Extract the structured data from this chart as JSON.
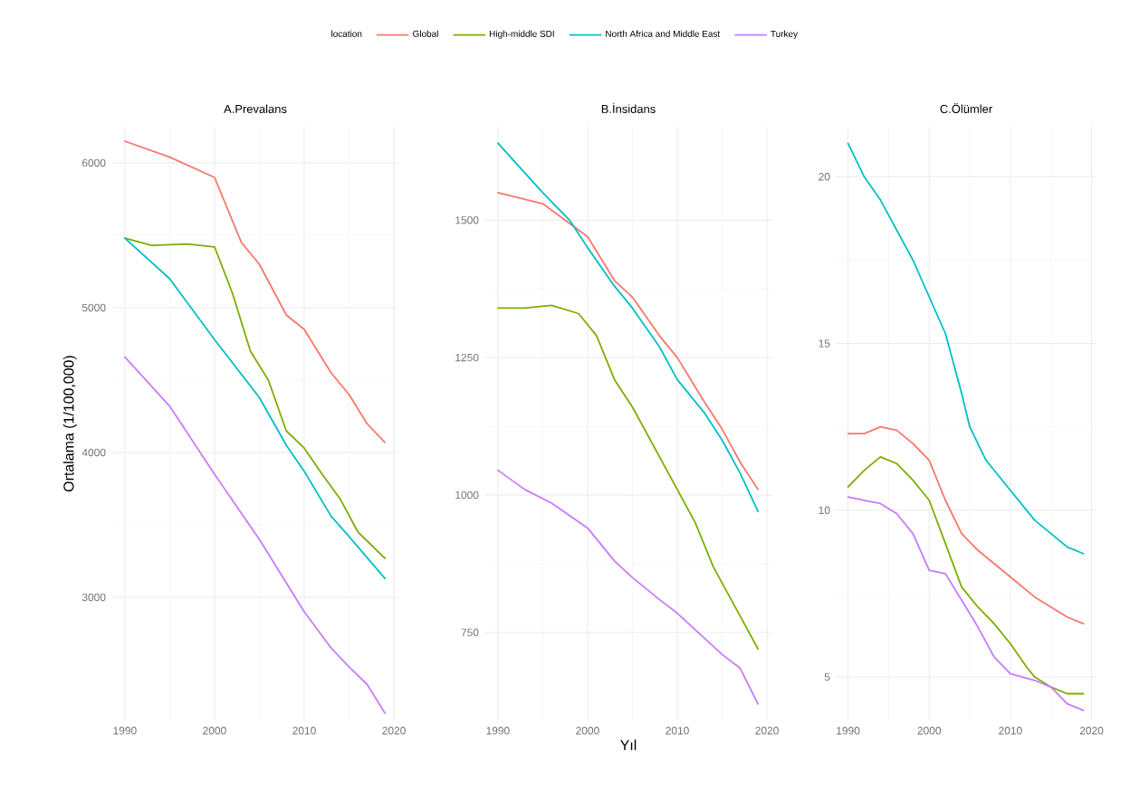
{
  "chart_data": [
    {
      "type": "line",
      "title": "A.Prevalans",
      "ylabel": "Ortalama (1/100,000)",
      "legend": "top",
      "legend_title": "location",
      "grid": true,
      "xlim": [
        1988.6,
        2020.5
      ],
      "ylim": [
        2150,
        6250
      ],
      "xticks": [
        1990,
        2000,
        2010,
        2020
      ],
      "yticks": [
        3000,
        4000,
        5000,
        6000
      ],
      "series": [
        {
          "name": "Global",
          "color": "#f8766d",
          "x": [
            1990,
            1995,
            2000,
            2003,
            2005,
            2008,
            2010,
            2013,
            2015,
            2017,
            2019
          ],
          "values": [
            6150,
            6040,
            5900,
            5450,
            5300,
            4950,
            4850,
            4550,
            4400,
            4200,
            4070
          ]
        },
        {
          "name": "High-middle SDI",
          "color": "#7cae00",
          "x": [
            1990,
            1993,
            1997,
            2000,
            2002,
            2004,
            2006,
            2008,
            2010,
            2012,
            2014,
            2016,
            2019
          ],
          "values": [
            5480,
            5430,
            5440,
            5420,
            5100,
            4700,
            4500,
            4150,
            4030,
            3850,
            3680,
            3450,
            3270
          ]
        },
        {
          "name": "North Africa and Middle East",
          "color": "#00bfc4",
          "x": [
            1990,
            1995,
            2000,
            2005,
            2008,
            2010,
            2013,
            2015,
            2019
          ],
          "values": [
            5480,
            5200,
            4780,
            4380,
            4050,
            3870,
            3560,
            3420,
            3130
          ]
        },
        {
          "name": "Turkey",
          "color": "#c77cff",
          "x": [
            1990,
            1995,
            2000,
            2005,
            2008,
            2010,
            2013,
            2015,
            2017,
            2019
          ],
          "values": [
            4660,
            4320,
            3850,
            3400,
            3100,
            2900,
            2650,
            2520,
            2400,
            2200
          ]
        }
      ]
    },
    {
      "type": "line",
      "title": "B.İnsidans",
      "xlabel": "Yıl",
      "grid": true,
      "xlim": [
        1988.6,
        2020.5
      ],
      "ylim": [
        590,
        1670
      ],
      "xticks": [
        1990,
        2000,
        2010,
        2020
      ],
      "yticks": [
        750,
        1000,
        1250,
        1500
      ],
      "series": [
        {
          "color": "#f8766d",
          "x": [
            1990,
            1995,
            2000,
            2003,
            2005,
            2008,
            2010,
            2013,
            2015,
            2017,
            2019
          ],
          "values": [
            1550,
            1530,
            1470,
            1390,
            1360,
            1290,
            1250,
            1170,
            1120,
            1060,
            1010
          ]
        },
        {
          "color": "#7cae00",
          "x": [
            1990,
            1993,
            1996,
            1999,
            2001,
            2003,
            2005,
            2008,
            2010,
            2012,
            2014,
            2016,
            2019
          ],
          "values": [
            1340,
            1340,
            1345,
            1330,
            1290,
            1210,
            1160,
            1070,
            1010,
            950,
            870,
            810,
            720
          ]
        },
        {
          "color": "#00bfc4",
          "x": [
            1990,
            1995,
            1998,
            2000,
            2003,
            2005,
            2008,
            2010,
            2013,
            2015,
            2017,
            2019
          ],
          "values": [
            1640,
            1550,
            1500,
            1450,
            1380,
            1340,
            1270,
            1210,
            1150,
            1100,
            1040,
            970
          ]
        },
        {
          "color": "#c77cff",
          "x": [
            1990,
            1993,
            1996,
            2000,
            2003,
            2005,
            2008,
            2010,
            2013,
            2015,
            2017,
            2019
          ],
          "values": [
            1045,
            1010,
            985,
            940,
            880,
            850,
            810,
            785,
            740,
            710,
            685,
            620
          ]
        }
      ]
    },
    {
      "type": "line",
      "title": "C.Ölümler",
      "grid": true,
      "xlim": [
        1988.6,
        2020.5
      ],
      "ylim": [
        3.7,
        21.5
      ],
      "xticks": [
        1990,
        2000,
        2010,
        2020
      ],
      "yticks": [
        5,
        10,
        15,
        20
      ],
      "series": [
        {
          "color": "#f8766d",
          "x": [
            1990,
            1992,
            1994,
            1996,
            1998,
            2000,
            2002,
            2004,
            2006,
            2008,
            2010,
            2013,
            2015,
            2017,
            2019
          ],
          "values": [
            12.3,
            12.3,
            12.5,
            12.4,
            12.0,
            11.5,
            10.3,
            9.3,
            8.8,
            8.4,
            8.0,
            7.4,
            7.1,
            6.8,
            6.6
          ]
        },
        {
          "color": "#7cae00",
          "x": [
            1990,
            1992,
            1994,
            1996,
            1998,
            2000,
            2002,
            2004,
            2006,
            2008,
            2010,
            2012,
            2013,
            2015,
            2017,
            2019
          ],
          "values": [
            10.7,
            11.2,
            11.6,
            11.4,
            10.9,
            10.3,
            9.0,
            7.7,
            7.1,
            6.6,
            6.0,
            5.3,
            5.0,
            4.7,
            4.5,
            4.5
          ]
        },
        {
          "color": "#00bfc4",
          "x": [
            1990,
            1992,
            1994,
            1996,
            1998,
            2000,
            2002,
            2004,
            2005,
            2007,
            2010,
            2013,
            2015,
            2017,
            2019
          ],
          "values": [
            21.0,
            20.0,
            19.3,
            18.4,
            17.5,
            16.4,
            15.3,
            13.5,
            12.5,
            11.5,
            10.6,
            9.7,
            9.3,
            8.9,
            8.7
          ]
        },
        {
          "color": "#c77cff",
          "x": [
            1990,
            1992,
            1994,
            1996,
            1998,
            2000,
            2002,
            2004,
            2006,
            2008,
            2010,
            2013,
            2015,
            2017,
            2019
          ],
          "values": [
            10.4,
            10.3,
            10.2,
            9.9,
            9.3,
            8.2,
            8.1,
            7.3,
            6.5,
            5.6,
            5.1,
            4.9,
            4.7,
            4.2,
            4.0
          ]
        }
      ]
    }
  ]
}
